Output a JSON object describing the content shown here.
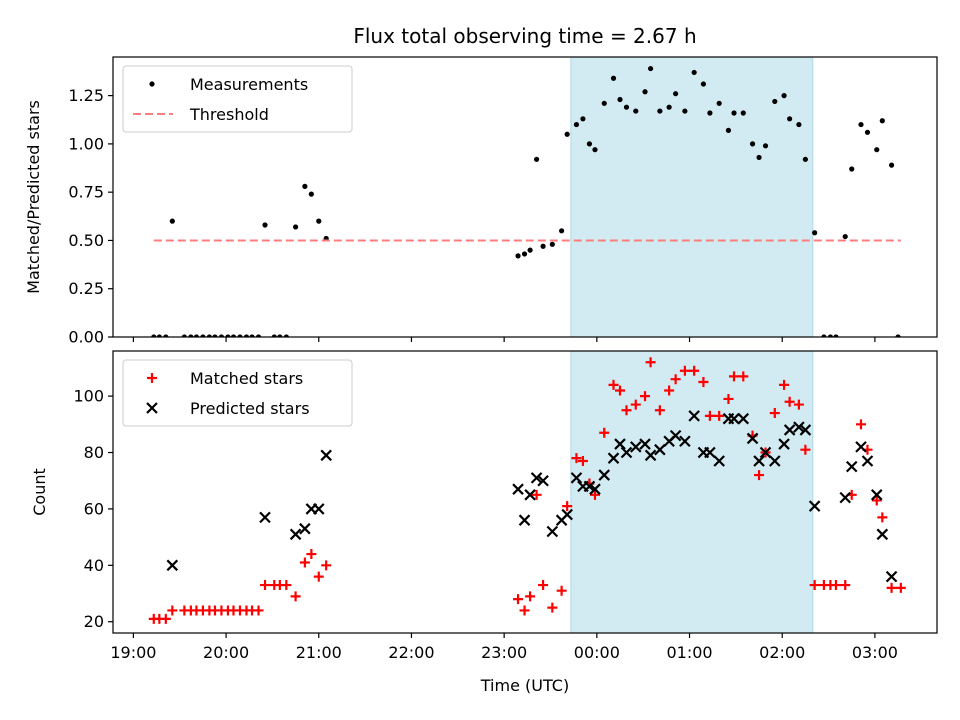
{
  "chart_data": {
    "title": "Flux total observing time = 2.67 h",
    "xlabel": "Time (UTC)",
    "x_tick_labels": [
      "19:00",
      "20:00",
      "21:00",
      "22:00",
      "23:00",
      "00:00",
      "01:00",
      "02:00",
      "03:00"
    ],
    "x_ticks_hours": [
      19,
      20,
      21,
      22,
      23,
      24,
      25,
      26,
      27
    ],
    "xlim_hours": [
      18.78,
      27.67
    ],
    "shaded_interval_hours": [
      23.72,
      26.33
    ],
    "shade_color": "#add8e6",
    "panels": [
      {
        "type": "scatter",
        "ylabel": "Matched/Predicted stars",
        "ylim": [
          0,
          1.45
        ],
        "y_ticks": [
          0,
          0.25,
          0.5,
          0.75,
          1.0,
          1.25
        ],
        "y_tick_labels": [
          "0.00",
          "0.25",
          "0.50",
          "0.75",
          "1.00",
          "1.25"
        ],
        "legend": [
          "Measurements",
          "Threshold"
        ],
        "series": [
          {
            "name": "Measurements",
            "marker": "dot",
            "color": "#000000",
            "points": [
              [
                19.22,
                0
              ],
              [
                19.28,
                0
              ],
              [
                19.35,
                0
              ],
              [
                19.42,
                0.6
              ],
              [
                19.55,
                0
              ],
              [
                19.62,
                0
              ],
              [
                19.68,
                0
              ],
              [
                19.75,
                0
              ],
              [
                19.82,
                0
              ],
              [
                19.88,
                0
              ],
              [
                19.95,
                0
              ],
              [
                20.02,
                0
              ],
              [
                20.08,
                0
              ],
              [
                20.15,
                0
              ],
              [
                20.22,
                0
              ],
              [
                20.28,
                0
              ],
              [
                20.35,
                0
              ],
              [
                20.42,
                0.58
              ],
              [
                20.52,
                0
              ],
              [
                20.58,
                0
              ],
              [
                20.65,
                0
              ],
              [
                20.75,
                0.57
              ],
              [
                20.85,
                0.78
              ],
              [
                20.92,
                0.74
              ],
              [
                21.0,
                0.6
              ],
              [
                21.08,
                0.51
              ],
              [
                23.15,
                0.42
              ],
              [
                23.22,
                0.43
              ],
              [
                23.28,
                0.45
              ],
              [
                23.35,
                0.92
              ],
              [
                23.42,
                0.47
              ],
              [
                23.52,
                0.48
              ],
              [
                23.62,
                0.55
              ],
              [
                23.68,
                1.05
              ],
              [
                23.78,
                1.1
              ],
              [
                23.85,
                1.13
              ],
              [
                23.92,
                1.0
              ],
              [
                23.98,
                0.97
              ],
              [
                24.08,
                1.21
              ],
              [
                24.18,
                1.34
              ],
              [
                24.25,
                1.23
              ],
              [
                24.32,
                1.19
              ],
              [
                24.42,
                1.17
              ],
              [
                24.52,
                1.27
              ],
              [
                24.58,
                1.39
              ],
              [
                24.68,
                1.17
              ],
              [
                24.78,
                1.19
              ],
              [
                24.85,
                1.26
              ],
              [
                24.95,
                1.17
              ],
              [
                25.05,
                1.37
              ],
              [
                25.15,
                1.31
              ],
              [
                25.22,
                1.16
              ],
              [
                25.32,
                1.21
              ],
              [
                25.42,
                1.07
              ],
              [
                25.48,
                1.16
              ],
              [
                25.58,
                1.16
              ],
              [
                25.68,
                1.0
              ],
              [
                25.75,
                0.93
              ],
              [
                25.82,
                0.99
              ],
              [
                25.92,
                1.22
              ],
              [
                26.02,
                1.25
              ],
              [
                26.08,
                1.13
              ],
              [
                26.18,
                1.1
              ],
              [
                26.25,
                0.92
              ],
              [
                26.35,
                0.54
              ],
              [
                26.45,
                0
              ],
              [
                26.52,
                0
              ],
              [
                26.58,
                0
              ],
              [
                26.68,
                0.52
              ],
              [
                26.75,
                0.87
              ],
              [
                26.85,
                1.1
              ],
              [
                26.92,
                1.06
              ],
              [
                27.02,
                0.97
              ],
              [
                27.08,
                1.12
              ],
              [
                27.18,
                0.89
              ],
              [
                27.25,
                0
              ]
            ]
          },
          {
            "name": "Threshold",
            "marker": "dashed-line",
            "color": "#ff7f7f",
            "y": 0.5,
            "x_range": [
              19.22,
              27.28
            ]
          }
        ]
      },
      {
        "type": "scatter",
        "ylabel": "Count",
        "ylim": [
          16,
          116
        ],
        "y_ticks": [
          20,
          40,
          60,
          80,
          100
        ],
        "y_tick_labels": [
          "20",
          "40",
          "60",
          "80",
          "100"
        ],
        "legend": [
          "Matched stars",
          "Predicted stars"
        ],
        "series": [
          {
            "name": "Matched stars",
            "marker": "plus",
            "color": "#ff0000",
            "points": [
              [
                19.22,
                21
              ],
              [
                19.28,
                21
              ],
              [
                19.35,
                21
              ],
              [
                19.42,
                24
              ],
              [
                19.55,
                24
              ],
              [
                19.62,
                24
              ],
              [
                19.68,
                24
              ],
              [
                19.75,
                24
              ],
              [
                19.82,
                24
              ],
              [
                19.88,
                24
              ],
              [
                19.95,
                24
              ],
              [
                20.02,
                24
              ],
              [
                20.08,
                24
              ],
              [
                20.15,
                24
              ],
              [
                20.22,
                24
              ],
              [
                20.28,
                24
              ],
              [
                20.35,
                24
              ],
              [
                20.42,
                33
              ],
              [
                20.52,
                33
              ],
              [
                20.58,
                33
              ],
              [
                20.65,
                33
              ],
              [
                20.75,
                29
              ],
              [
                20.85,
                41
              ],
              [
                20.92,
                44
              ],
              [
                21.0,
                36
              ],
              [
                21.08,
                40
              ],
              [
                23.15,
                28
              ],
              [
                23.22,
                24
              ],
              [
                23.28,
                29
              ],
              [
                23.35,
                65
              ],
              [
                23.42,
                33
              ],
              [
                23.52,
                25
              ],
              [
                23.62,
                31
              ],
              [
                23.68,
                61
              ],
              [
                23.78,
                78
              ],
              [
                23.85,
                77
              ],
              [
                23.92,
                69
              ],
              [
                23.98,
                65
              ],
              [
                24.08,
                87
              ],
              [
                24.18,
                104
              ],
              [
                24.25,
                102
              ],
              [
                24.32,
                95
              ],
              [
                24.42,
                97
              ],
              [
                24.52,
                100
              ],
              [
                24.58,
                112
              ],
              [
                24.68,
                95
              ],
              [
                24.78,
                102
              ],
              [
                24.85,
                106
              ],
              [
                24.95,
                109
              ],
              [
                25.05,
                109
              ],
              [
                25.15,
                105
              ],
              [
                25.22,
                93
              ],
              [
                25.32,
                93
              ],
              [
                25.42,
                99
              ],
              [
                25.48,
                107
              ],
              [
                25.58,
                107
              ],
              [
                25.68,
                86
              ],
              [
                25.75,
                72
              ],
              [
                25.82,
                80
              ],
              [
                25.92,
                94
              ],
              [
                26.02,
                104
              ],
              [
                26.08,
                98
              ],
              [
                26.18,
                97
              ],
              [
                26.25,
                81
              ],
              [
                26.35,
                33
              ],
              [
                26.45,
                33
              ],
              [
                26.52,
                33
              ],
              [
                26.58,
                33
              ],
              [
                26.68,
                33
              ],
              [
                26.75,
                65
              ],
              [
                26.85,
                90
              ],
              [
                26.92,
                81
              ],
              [
                27.02,
                63
              ],
              [
                27.08,
                57
              ],
              [
                27.18,
                32
              ],
              [
                27.28,
                32
              ]
            ]
          },
          {
            "name": "Predicted stars",
            "marker": "x",
            "color": "#000000",
            "points": [
              [
                19.42,
                40
              ],
              [
                20.42,
                57
              ],
              [
                20.75,
                51
              ],
              [
                20.85,
                53
              ],
              [
                20.92,
                60
              ],
              [
                21.0,
                60
              ],
              [
                21.08,
                79
              ],
              [
                23.15,
                67
              ],
              [
                23.22,
                56
              ],
              [
                23.28,
                65
              ],
              [
                23.35,
                71
              ],
              [
                23.42,
                70
              ],
              [
                23.52,
                52
              ],
              [
                23.62,
                56
              ],
              [
                23.68,
                58
              ],
              [
                23.78,
                71
              ],
              [
                23.85,
                68
              ],
              [
                23.92,
                68
              ],
              [
                23.98,
                67
              ],
              [
                24.08,
                72
              ],
              [
                24.18,
                78
              ],
              [
                24.25,
                83
              ],
              [
                24.32,
                80
              ],
              [
                24.42,
                82
              ],
              [
                24.52,
                83
              ],
              [
                24.58,
                79
              ],
              [
                24.68,
                81
              ],
              [
                24.78,
                84
              ],
              [
                24.85,
                86
              ],
              [
                24.95,
                84
              ],
              [
                25.05,
                93
              ],
              [
                25.15,
                80
              ],
              [
                25.22,
                80
              ],
              [
                25.32,
                77
              ],
              [
                25.42,
                92
              ],
              [
                25.48,
                92
              ],
              [
                25.58,
                92
              ],
              [
                25.68,
                85
              ],
              [
                25.75,
                77
              ],
              [
                25.82,
                80
              ],
              [
                25.92,
                77
              ],
              [
                26.02,
                83
              ],
              [
                26.08,
                88
              ],
              [
                26.18,
                89
              ],
              [
                26.25,
                88
              ],
              [
                26.35,
                61
              ],
              [
                26.68,
                64
              ],
              [
                26.75,
                75
              ],
              [
                26.85,
                82
              ],
              [
                26.92,
                77
              ],
              [
                27.02,
                65
              ],
              [
                27.08,
                51
              ],
              [
                27.18,
                36
              ]
            ]
          }
        ]
      }
    ]
  }
}
